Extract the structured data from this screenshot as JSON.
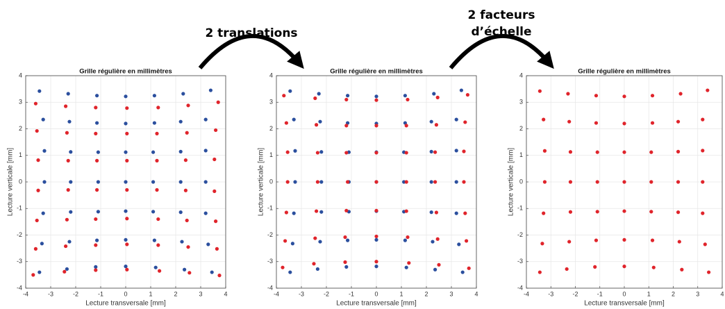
{
  "arrows": [
    {
      "label": [
        "2 translations"
      ]
    },
    {
      "label": [
        "2 facteurs",
        "d’échelle"
      ]
    }
  ],
  "chart_data": [
    {
      "type": "scatter",
      "title": "Grille régulière en millimètres",
      "x_label": "Lecture transversale [mm]",
      "y_label": "Lecture verticale [mm]",
      "xlim": [
        -4,
        4
      ],
      "ylim": [
        -4,
        4
      ],
      "xticks": [
        -4,
        -3,
        -2,
        -1,
        0,
        1,
        2,
        3,
        4
      ],
      "yticks": [
        -4,
        -3,
        -2,
        -1,
        0,
        1,
        2,
        3,
        4
      ],
      "grid": true,
      "series": [
        {
          "color": "#2b4f9e",
          "x": [
            -3.45,
            -2.3,
            -1.15,
            0,
            1.15,
            2.3,
            3.4,
            -3.3,
            -2.25,
            -1.15,
            0,
            1.15,
            2.2,
            3.2,
            -3.25,
            -2.2,
            -1.1,
            0,
            1.1,
            2.2,
            3.2,
            -3.25,
            -2.2,
            -1.1,
            0,
            1.1,
            2.2,
            3.2,
            -3.3,
            -2.2,
            -1.1,
            0,
            1.1,
            2.2,
            3.2,
            -3.35,
            -2.25,
            -1.15,
            0,
            1.15,
            2.25,
            3.3,
            -3.45,
            -2.35,
            -1.2,
            0,
            1.2,
            2.35,
            3.45
          ],
          "y": [
            3.42,
            3.32,
            3.25,
            3.22,
            3.25,
            3.32,
            3.45,
            2.35,
            2.27,
            2.22,
            2.2,
            2.22,
            2.27,
            2.35,
            1.17,
            1.13,
            1.12,
            1.12,
            1.12,
            1.14,
            1.18,
            0,
            0,
            0,
            0,
            0,
            0,
            0,
            -1.18,
            -1.13,
            -1.12,
            -1.1,
            -1.12,
            -1.14,
            -1.18,
            -2.32,
            -2.25,
            -2.2,
            -2.18,
            -2.2,
            -2.25,
            -2.35,
            -3.4,
            -3.28,
            -3.2,
            -3.18,
            -3.22,
            -3.3,
            -3.4
          ]
        },
        {
          "color": "#e0242b",
          "x": [
            -3.6,
            -2.4,
            -1.2,
            0.05,
            1.3,
            2.5,
            3.7,
            -3.55,
            -2.35,
            -1.2,
            0.05,
            1.25,
            2.45,
            3.6,
            -3.5,
            -2.3,
            -1.15,
            0.05,
            1.25,
            2.4,
            3.55,
            -3.5,
            -2.3,
            -1.15,
            0.05,
            1.25,
            2.4,
            3.55,
            -3.55,
            -2.35,
            -1.2,
            0.05,
            1.3,
            2.45,
            3.6,
            -3.6,
            -2.4,
            -1.2,
            0.05,
            1.3,
            2.5,
            3.65,
            -3.7,
            -2.45,
            -1.2,
            0.05,
            1.35,
            2.55,
            3.75
          ],
          "y": [
            2.95,
            2.85,
            2.8,
            2.78,
            2.8,
            2.88,
            3.0,
            1.92,
            1.85,
            1.82,
            1.82,
            1.82,
            1.85,
            1.95,
            0.82,
            0.8,
            0.8,
            0.8,
            0.8,
            0.82,
            0.85,
            -0.32,
            -0.3,
            -0.3,
            -0.3,
            -0.3,
            -0.32,
            -0.35,
            -1.45,
            -1.42,
            -1.4,
            -1.38,
            -1.4,
            -1.45,
            -1.48,
            -2.52,
            -2.42,
            -2.38,
            -2.35,
            -2.38,
            -2.45,
            -2.52,
            -3.5,
            -3.38,
            -3.32,
            -3.3,
            -3.35,
            -3.42,
            -3.52
          ]
        }
      ]
    },
    {
      "type": "scatter",
      "title": "Grille régulière en millimètres",
      "x_label": "Lecture transversale [mm]",
      "y_label": "Lecture verticale [mm]",
      "xlim": [
        -4,
        4
      ],
      "ylim": [
        -4,
        4
      ],
      "xticks": [
        -4,
        -3,
        -2,
        -1,
        0,
        1,
        2,
        3,
        4
      ],
      "yticks": [
        -4,
        -3,
        -2,
        -1,
        0,
        1,
        2,
        3,
        4
      ],
      "grid": true,
      "series": [
        {
          "color": "#2b4f9e",
          "x": [
            -3.45,
            -2.3,
            -1.15,
            0,
            1.15,
            2.3,
            3.4,
            -3.3,
            -2.25,
            -1.15,
            0,
            1.15,
            2.2,
            3.2,
            -3.25,
            -2.2,
            -1.1,
            0,
            1.1,
            2.2,
            3.2,
            -3.25,
            -2.2,
            -1.1,
            0,
            1.1,
            2.2,
            3.2,
            -3.3,
            -2.2,
            -1.1,
            0,
            1.1,
            2.2,
            3.2,
            -3.35,
            -2.25,
            -1.15,
            0,
            1.15,
            2.25,
            3.3,
            -3.45,
            -2.35,
            -1.2,
            0,
            1.2,
            2.35,
            3.45
          ],
          "y": [
            3.42,
            3.32,
            3.25,
            3.22,
            3.25,
            3.32,
            3.45,
            2.35,
            2.27,
            2.22,
            2.2,
            2.22,
            2.27,
            2.35,
            1.17,
            1.13,
            1.12,
            1.12,
            1.12,
            1.14,
            1.18,
            0,
            0,
            0,
            0,
            0,
            0,
            0,
            -1.18,
            -1.13,
            -1.12,
            -1.1,
            -1.12,
            -1.14,
            -1.18,
            -2.32,
            -2.25,
            -2.2,
            -2.18,
            -2.2,
            -2.25,
            -2.35,
            -3.4,
            -3.28,
            -3.2,
            -3.18,
            -3.22,
            -3.3,
            -3.4
          ]
        },
        {
          "color": "#e0242b",
          "x": [
            -3.7,
            -2.45,
            -1.2,
            0,
            1.25,
            2.45,
            3.65,
            -3.6,
            -2.4,
            -1.2,
            0,
            1.2,
            2.4,
            3.55,
            -3.55,
            -2.35,
            -1.2,
            0,
            1.2,
            2.35,
            3.5,
            -3.55,
            -2.35,
            -1.15,
            0,
            1.2,
            2.35,
            3.5,
            -3.6,
            -2.4,
            -1.2,
            0,
            1.2,
            2.4,
            3.55,
            -3.65,
            -2.45,
            -1.25,
            0,
            1.25,
            2.45,
            3.6,
            -3.75,
            -2.5,
            -1.25,
            0,
            1.3,
            2.5,
            3.7
          ],
          "y": [
            3.25,
            3.15,
            3.1,
            3.08,
            3.1,
            3.18,
            3.28,
            2.22,
            2.15,
            2.12,
            2.12,
            2.12,
            2.15,
            2.25,
            1.12,
            1.1,
            1.1,
            1.1,
            1.1,
            1.12,
            1.15,
            0,
            0,
            0,
            0,
            0,
            0,
            0,
            -1.15,
            -1.1,
            -1.08,
            -1.08,
            -1.1,
            -1.15,
            -1.18,
            -2.22,
            -2.12,
            -2.08,
            -2.05,
            -2.08,
            -2.15,
            -2.22,
            -3.22,
            -3.08,
            -3.02,
            -3.0,
            -3.05,
            -3.12,
            -3.25
          ]
        }
      ]
    },
    {
      "type": "scatter",
      "title": "Grille régulière en millimètres",
      "x_label": "Lecture transversale [mm]",
      "y_label": "Lecture verticale [mm]",
      "xlim": [
        -4,
        4
      ],
      "ylim": [
        -4,
        4
      ],
      "xticks": [
        -4,
        -3,
        -2,
        -1,
        0,
        1,
        2,
        3,
        4
      ],
      "yticks": [
        -4,
        -3,
        -2,
        -1,
        0,
        1,
        2,
        3,
        4
      ],
      "grid": true,
      "series": [
        {
          "color": "#e0242b",
          "x": [
            -3.45,
            -2.3,
            -1.15,
            0,
            1.15,
            2.3,
            3.4,
            -3.3,
            -2.25,
            -1.15,
            0,
            1.15,
            2.2,
            3.2,
            -3.25,
            -2.2,
            -1.1,
            0,
            1.1,
            2.2,
            3.2,
            -3.25,
            -2.2,
            -1.1,
            0,
            1.1,
            2.2,
            3.2,
            -3.3,
            -2.2,
            -1.1,
            0,
            1.1,
            2.2,
            3.2,
            -3.35,
            -2.25,
            -1.15,
            0,
            1.15,
            2.25,
            3.3,
            -3.45,
            -2.35,
            -1.2,
            0,
            1.2,
            2.35,
            3.45
          ],
          "y": [
            3.42,
            3.32,
            3.25,
            3.22,
            3.25,
            3.32,
            3.45,
            2.35,
            2.27,
            2.22,
            2.2,
            2.22,
            2.27,
            2.35,
            1.17,
            1.13,
            1.12,
            1.12,
            1.12,
            1.14,
            1.18,
            0,
            0,
            0,
            0,
            0,
            0,
            0,
            -1.18,
            -1.13,
            -1.12,
            -1.1,
            -1.12,
            -1.14,
            -1.18,
            -2.32,
            -2.25,
            -2.2,
            -2.18,
            -2.2,
            -2.25,
            -2.35,
            -3.4,
            -3.28,
            -3.2,
            -3.18,
            -3.22,
            -3.3,
            -3.4
          ]
        }
      ]
    }
  ]
}
